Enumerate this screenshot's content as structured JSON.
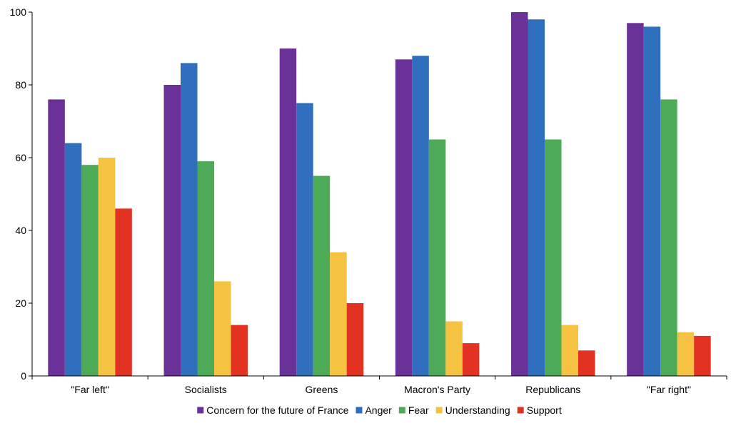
{
  "chart_data": {
    "type": "bar",
    "title": "",
    "xlabel": "",
    "ylabel": "",
    "ylim": [
      0,
      100
    ],
    "yticks": [
      0,
      20,
      40,
      60,
      80,
      100
    ],
    "grid": false,
    "legend_position": "bottom",
    "categories": [
      "\"Far left\"",
      "Socialists",
      "Greens",
      "Macron's Party",
      "Republicans",
      "\"Far right\""
    ],
    "series": [
      {
        "name": "Concern for the future of France",
        "color": "#6a3199",
        "values": [
          76,
          80,
          90,
          87,
          100,
          97
        ]
      },
      {
        "name": "Anger",
        "color": "#2f6fbe",
        "values": [
          64,
          86,
          75,
          88,
          98,
          96
        ]
      },
      {
        "name": "Fear",
        "color": "#4daa57",
        "values": [
          58,
          59,
          55,
          65,
          65,
          76
        ]
      },
      {
        "name": "Understanding",
        "color": "#f5c242",
        "values": [
          60,
          26,
          34,
          15,
          14,
          12
        ]
      },
      {
        "name": "Support",
        "color": "#e33222",
        "values": [
          46,
          14,
          20,
          9,
          7,
          11
        ]
      }
    ]
  }
}
